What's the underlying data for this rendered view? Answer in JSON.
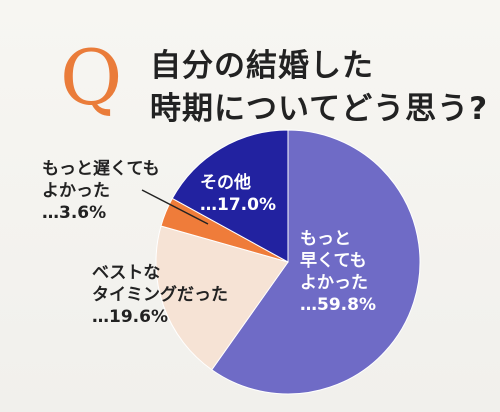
{
  "question_mark": "Q",
  "title": {
    "line1": "自分の結婚した",
    "line2": "時期についてどう思う?"
  },
  "chart_data": {
    "type": "pie",
    "slices": [
      {
        "label_lines": [
          "もっと",
          "早くても",
          "よかった",
          "…59.8%"
        ],
        "value": 59.8,
        "color": "#6f6bc6"
      },
      {
        "label_lines": [
          "ベストな",
          "タイミングだった",
          "…19.6%"
        ],
        "value": 19.6,
        "color": "#f6e3d5"
      },
      {
        "label_lines": [
          "もっと遅くても",
          "よかった",
          "…3.6%"
        ],
        "value": 3.6,
        "color": "#ef7c3a"
      },
      {
        "label_lines": [
          "その他",
          "…17.0%"
        ],
        "value": 17.0,
        "color": "#2222a0"
      }
    ],
    "start_angle_deg": 0,
    "direction": "clockwise"
  }
}
